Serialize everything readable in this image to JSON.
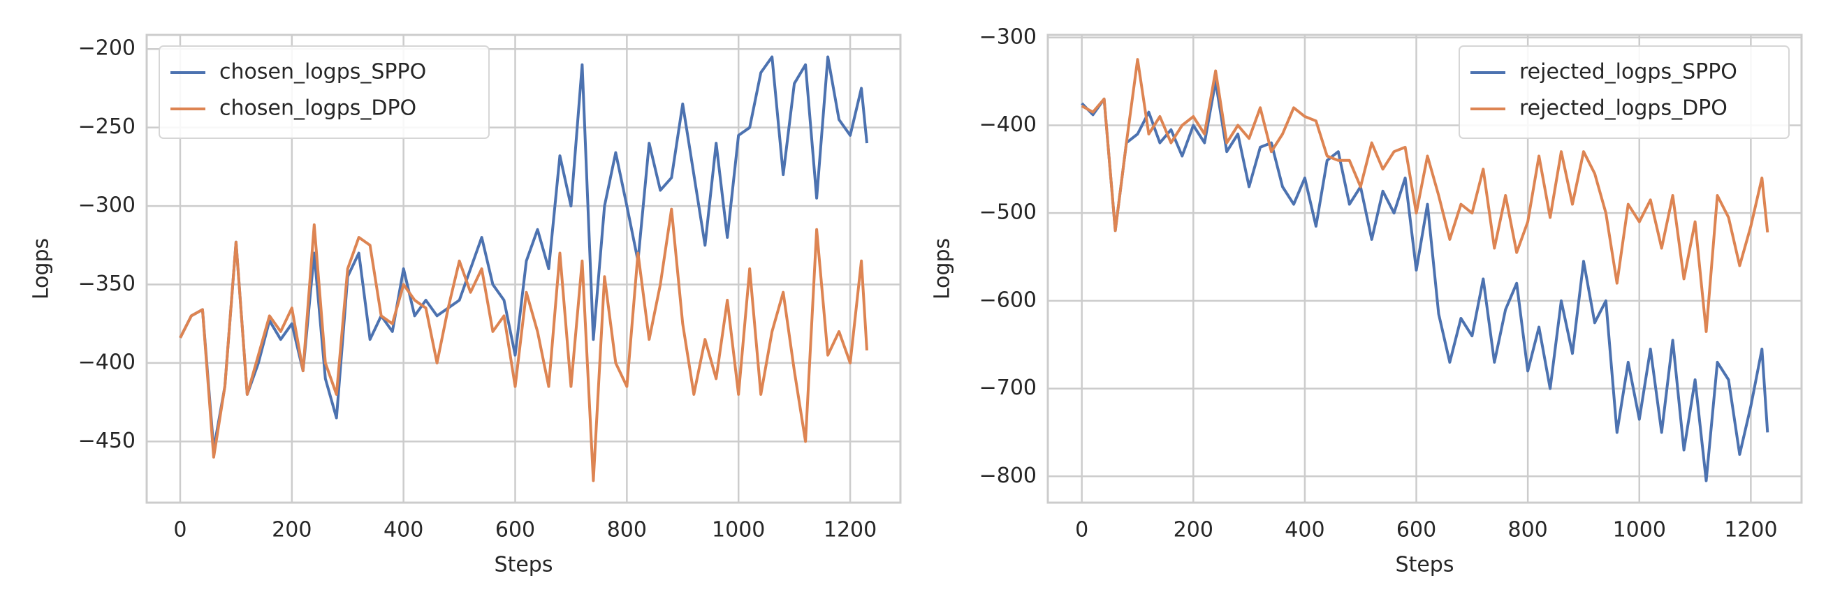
{
  "chart_data": [
    {
      "type": "line",
      "xlabel": "Steps",
      "ylabel": "Logps",
      "grid": true,
      "legend": "upper left",
      "xlim": [
        -60,
        1290
      ],
      "ylim": [
        -489,
        -191
      ],
      "xticks": [
        0,
        200,
        400,
        600,
        800,
        1000,
        1200
      ],
      "yticks": [
        {
          "value": -450,
          "label": "−450"
        },
        {
          "value": -400,
          "label": "−400"
        },
        {
          "value": -350,
          "label": "−350"
        },
        {
          "value": -300,
          "label": "−300"
        },
        {
          "value": -250,
          "label": "−250"
        },
        {
          "value": -200,
          "label": "−200"
        }
      ],
      "x": [
        0,
        20,
        40,
        60,
        80,
        100,
        120,
        140,
        160,
        180,
        200,
        220,
        240,
        260,
        280,
        300,
        320,
        340,
        360,
        380,
        400,
        420,
        440,
        460,
        480,
        500,
        520,
        540,
        560,
        580,
        600,
        620,
        640,
        660,
        680,
        700,
        720,
        740,
        760,
        780,
        800,
        820,
        840,
        860,
        880,
        900,
        920,
        940,
        960,
        980,
        1000,
        1020,
        1040,
        1060,
        1080,
        1100,
        1120,
        1140,
        1160,
        1180,
        1200,
        1220,
        1230
      ],
      "series": [
        {
          "name": "chosen_logps_SPPO",
          "color": "#4c72b0",
          "values": [
            -384,
            -370,
            -366,
            -455,
            -415,
            -323,
            -420,
            -400,
            -373,
            -385,
            -375,
            -405,
            -330,
            -410,
            -435,
            -345,
            -330,
            -385,
            -370,
            -380,
            -340,
            -370,
            -360,
            -370,
            -365,
            -360,
            -340,
            -320,
            -350,
            -360,
            -395,
            -335,
            -315,
            -340,
            -268,
            -300,
            -210,
            -385,
            -300,
            -266,
            -300,
            -335,
            -260,
            -290,
            -282,
            -235,
            -280,
            -325,
            -260,
            -320,
            -255,
            -250,
            -215,
            -205,
            -280,
            -222,
            -210,
            -295,
            -205,
            -245,
            -255,
            -225,
            -260
          ]
        },
        {
          "name": "chosen_logps_DPO",
          "color": "#dd8452",
          "values": [
            -384,
            -370,
            -366,
            -460,
            -415,
            -323,
            -420,
            -395,
            -370,
            -380,
            -365,
            -405,
            -312,
            -400,
            -420,
            -340,
            -320,
            -325,
            -370,
            -375,
            -350,
            -360,
            -365,
            -400,
            -365,
            -335,
            -355,
            -340,
            -380,
            -370,
            -415,
            -355,
            -380,
            -415,
            -330,
            -415,
            -335,
            -475,
            -345,
            -400,
            -415,
            -330,
            -385,
            -350,
            -302,
            -375,
            -420,
            -385,
            -410,
            -360,
            -420,
            -340,
            -420,
            -380,
            -355,
            -405,
            -450,
            -315,
            -395,
            -380,
            -400,
            -335,
            -392
          ]
        }
      ]
    },
    {
      "type": "line",
      "xlabel": "Steps",
      "ylabel": "Logps",
      "grid": true,
      "legend": "upper right",
      "xlim": [
        -61,
        1291
      ],
      "ylim": [
        -830,
        -297
      ],
      "xticks": [
        0,
        200,
        400,
        600,
        800,
        1000,
        1200
      ],
      "yticks": [
        {
          "value": -800,
          "label": "−800"
        },
        {
          "value": -700,
          "label": "−700"
        },
        {
          "value": -600,
          "label": "−600"
        },
        {
          "value": -500,
          "label": "−500"
        },
        {
          "value": -400,
          "label": "−400"
        },
        {
          "value": -300,
          "label": "−300"
        }
      ],
      "x": [
        0,
        20,
        40,
        60,
        80,
        100,
        120,
        140,
        160,
        180,
        200,
        220,
        240,
        260,
        280,
        300,
        320,
        340,
        360,
        380,
        400,
        420,
        440,
        460,
        480,
        500,
        520,
        540,
        560,
        580,
        600,
        620,
        640,
        660,
        680,
        700,
        720,
        740,
        760,
        780,
        800,
        820,
        840,
        860,
        880,
        900,
        920,
        940,
        960,
        980,
        1000,
        1020,
        1040,
        1060,
        1080,
        1100,
        1120,
        1140,
        1160,
        1180,
        1200,
        1220,
        1230
      ],
      "series": [
        {
          "name": "rejected_logps_SPPO",
          "color": "#4c72b0",
          "values": [
            -375,
            -388,
            -370,
            -520,
            -420,
            -410,
            -385,
            -420,
            -405,
            -435,
            -400,
            -420,
            -350,
            -430,
            -410,
            -470,
            -425,
            -420,
            -470,
            -490,
            -460,
            -515,
            -440,
            -430,
            -490,
            -470,
            -530,
            -475,
            -500,
            -460,
            -565,
            -490,
            -615,
            -670,
            -620,
            -640,
            -575,
            -670,
            -610,
            -580,
            -680,
            -630,
            -700,
            -600,
            -660,
            -555,
            -625,
            -600,
            -750,
            -670,
            -735,
            -655,
            -750,
            -645,
            -770,
            -690,
            -805,
            -670,
            -690,
            -775,
            -720,
            -655,
            -750
          ]
        },
        {
          "name": "rejected_logps_DPO",
          "color": "#dd8452",
          "values": [
            -378,
            -385,
            -370,
            -520,
            -420,
            -325,
            -410,
            -390,
            -420,
            -400,
            -390,
            -410,
            -338,
            -420,
            -400,
            -415,
            -380,
            -430,
            -410,
            -380,
            -390,
            -395,
            -435,
            -440,
            -440,
            -470,
            -420,
            -450,
            -430,
            -425,
            -500,
            -435,
            -480,
            -530,
            -490,
            -500,
            -450,
            -540,
            -480,
            -545,
            -510,
            -435,
            -505,
            -430,
            -490,
            -430,
            -455,
            -500,
            -580,
            -490,
            -510,
            -485,
            -540,
            -480,
            -575,
            -510,
            -635,
            -480,
            -505,
            -560,
            -515,
            -460,
            -522
          ]
        }
      ]
    }
  ]
}
